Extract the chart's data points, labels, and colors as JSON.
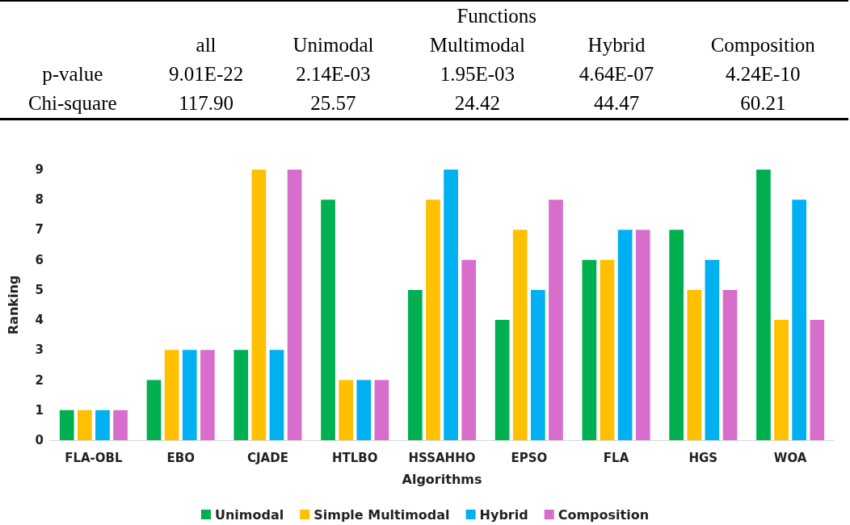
{
  "chart_data": [
    {
      "type": "other",
      "title": "Functions",
      "categories": [
        "all",
        "Unimodal",
        "Multimodal",
        "Hybrid",
        "Composition"
      ],
      "series": [
        {
          "name": "p-value",
          "values": [
            9.01e-22,
            0.00214,
            0.00195,
            4.64e-07,
            4.24e-10
          ],
          "value_labels": [
            "9.01E-22",
            "2.14E-03",
            "1.95E-03",
            "4.64E-07",
            "4.24E-10"
          ]
        },
        {
          "name": "Chi-square",
          "values": [
            117.9,
            25.57,
            24.42,
            44.47,
            60.21
          ],
          "value_labels": [
            "117.90",
            "25.57",
            "24.42",
            "44.47",
            "60.21"
          ]
        }
      ]
    },
    {
      "type": "bar",
      "xlabel": "Algorithms",
      "ylabel": "Ranking",
      "categories": [
        "FLA-OBL",
        "EBO",
        "CJADE",
        "HTLBO",
        "HSSAHHO",
        "EPSO",
        "FLA",
        "HGS",
        "WOA"
      ],
      "series": [
        {
          "name": "Unimodal",
          "color": "#00b050",
          "values": [
            1,
            2,
            3,
            8,
            5,
            4,
            6,
            7,
            9
          ]
        },
        {
          "name": "Simple Multimodal",
          "color": "#ffc000",
          "values": [
            1,
            3,
            9,
            2,
            8,
            7,
            6,
            5,
            4
          ]
        },
        {
          "name": "Hybrid",
          "color": "#00b0f0",
          "values": [
            1,
            3,
            3,
            2,
            9,
            5,
            7,
            6,
            8
          ]
        },
        {
          "name": "Composition",
          "color": "#d86ecc",
          "values": [
            1,
            3,
            9,
            2,
            6,
            8,
            7,
            5,
            4
          ]
        }
      ],
      "ylim": [
        0,
        9
      ],
      "yticks": [
        0,
        1,
        2,
        3,
        4,
        5,
        6,
        7,
        8,
        9
      ],
      "grid": false,
      "legend": "bottom"
    }
  ]
}
